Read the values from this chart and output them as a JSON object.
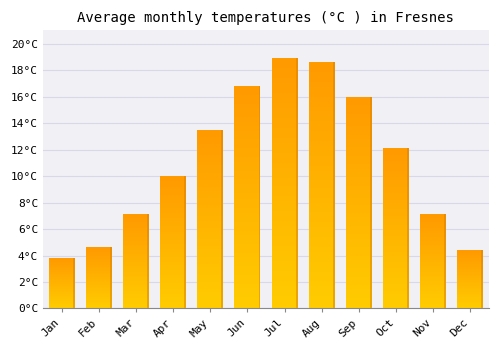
{
  "title": "Average monthly temperatures (°C ) in Fresnes",
  "months": [
    "Jan",
    "Feb",
    "Mar",
    "Apr",
    "May",
    "Jun",
    "Jul",
    "Aug",
    "Sep",
    "Oct",
    "Nov",
    "Dec"
  ],
  "values": [
    3.8,
    4.6,
    7.1,
    10.0,
    13.5,
    16.8,
    18.9,
    18.6,
    16.0,
    12.1,
    7.1,
    4.4
  ],
  "bar_color_main": "#FFA726",
  "bar_color_edge": "#E65100",
  "background_color": "#ffffff",
  "plot_bg_color": "#f0f0f5",
  "grid_color": "#d8d8e8",
  "yticks": [
    0,
    2,
    4,
    6,
    8,
    10,
    12,
    14,
    16,
    18,
    20
  ],
  "ylim": [
    0,
    21
  ],
  "title_fontsize": 10,
  "tick_fontsize": 8
}
